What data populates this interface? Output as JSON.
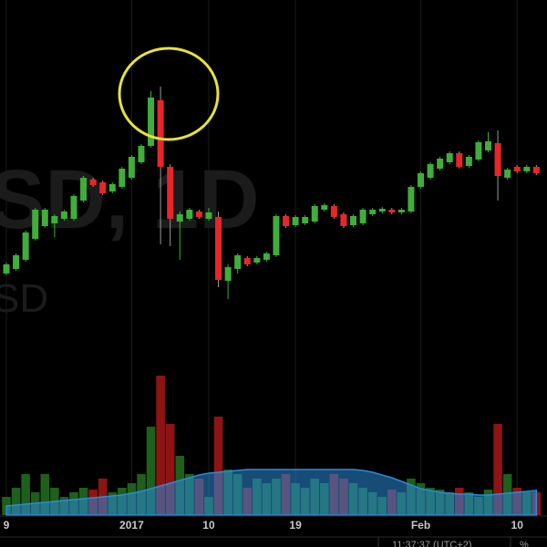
{
  "chart_data": {
    "type": "candlestick",
    "watermark": "SD, 1D",
    "watermark_sub": "SD",
    "clock": "11:37:37 (UTC+2)",
    "percent_label": "%",
    "categories": [
      "9",
      null,
      null,
      null,
      null,
      null,
      null,
      null,
      null,
      null,
      null,
      null,
      null,
      "2017",
      null,
      null,
      null,
      null,
      null,
      null,
      null,
      "10",
      null,
      null,
      null,
      null,
      null,
      null,
      null,
      null,
      "19",
      null,
      null,
      null,
      null,
      null,
      null,
      null,
      null,
      null,
      null,
      null,
      null,
      "Feb",
      null,
      null,
      null,
      null,
      null,
      null,
      null,
      null,
      null,
      "10",
      null,
      null
    ],
    "open": [
      300,
      305,
      315,
      338,
      352,
      355,
      360,
      360,
      380,
      403,
      400,
      390,
      395,
      405,
      422,
      440,
      490,
      417,
      357,
      360,
      368,
      360,
      362,
      292,
      305,
      317,
      312,
      315,
      320,
      363,
      353,
      355,
      357,
      370,
      374,
      365,
      353,
      355,
      365,
      368,
      370,
      367,
      368,
      395,
      405,
      415,
      422,
      432,
      418,
      425,
      435,
      443,
      405,
      417,
      412,
      417
    ],
    "high": [
      312,
      322,
      347,
      372,
      372,
      365,
      370,
      387,
      407,
      405,
      402,
      400,
      417,
      430,
      442,
      500,
      505,
      420,
      368,
      372,
      370,
      372,
      368,
      310,
      322,
      319,
      319,
      324,
      365,
      365,
      364,
      364,
      376,
      377,
      376,
      367,
      365,
      372,
      372,
      373,
      372,
      372,
      397,
      412,
      422,
      428,
      434,
      434,
      430,
      446,
      455,
      457,
      416,
      419,
      419,
      419
    ],
    "low": [
      298,
      303,
      313,
      336,
      350,
      340,
      358,
      358,
      378,
      395,
      386,
      388,
      393,
      403,
      420,
      438,
      332,
      330,
      315,
      358,
      360,
      358,
      285,
      272,
      300,
      308,
      310,
      313,
      318,
      350,
      351,
      353,
      355,
      368,
      360,
      350,
      351,
      353,
      363,
      366,
      365,
      365,
      366,
      393,
      403,
      413,
      420,
      415,
      416,
      423,
      433,
      380,
      403,
      410,
      410,
      408
    ],
    "close": [
      310,
      320,
      345,
      370,
      370,
      363,
      368,
      385,
      405,
      397,
      388,
      398,
      415,
      428,
      440,
      493,
      417,
      360,
      365,
      370,
      362,
      367,
      293,
      307,
      320,
      310,
      317,
      322,
      363,
      352,
      362,
      362,
      374,
      375,
      362,
      352,
      363,
      370,
      370,
      371,
      367,
      370,
      395,
      410,
      420,
      426,
      432,
      417,
      428,
      444,
      445,
      407,
      414,
      412,
      417,
      410
    ],
    "volume": [
      20,
      30,
      45,
      25,
      45,
      30,
      20,
      25,
      30,
      28,
      40,
      25,
      30,
      35,
      45,
      97,
      153,
      100,
      65,
      45,
      40,
      20,
      108,
      50,
      45,
      30,
      40,
      35,
      40,
      45,
      35,
      30,
      40,
      35,
      45,
      40,
      35,
      30,
      25,
      20,
      28,
      25,
      40,
      35,
      30,
      28,
      25,
      30,
      25,
      20,
      28,
      100,
      45,
      30,
      25,
      25
    ],
    "volume_ma": [
      10,
      11,
      12,
      13,
      14,
      15,
      16,
      17,
      18,
      19,
      20,
      21,
      22,
      24,
      26,
      29,
      32,
      35,
      38,
      41,
      44,
      46,
      47,
      48,
      49,
      50,
      50,
      50,
      50,
      50,
      50,
      50,
      50,
      50,
      50,
      50,
      50,
      49,
      47,
      44,
      41,
      37,
      33,
      29,
      27,
      25,
      24,
      23,
      23,
      22,
      22,
      23,
      24,
      25,
      26,
      27
    ],
    "ylim": [
      260,
      600
    ],
    "volume_lim": [
      0,
      165
    ],
    "up_color": "#3fae3a",
    "down_color": "#e8262a",
    "volume_up_color": "#1e5f1c",
    "volume_down_color": "#8e1414",
    "ma_color": "#2a8ad8"
  }
}
